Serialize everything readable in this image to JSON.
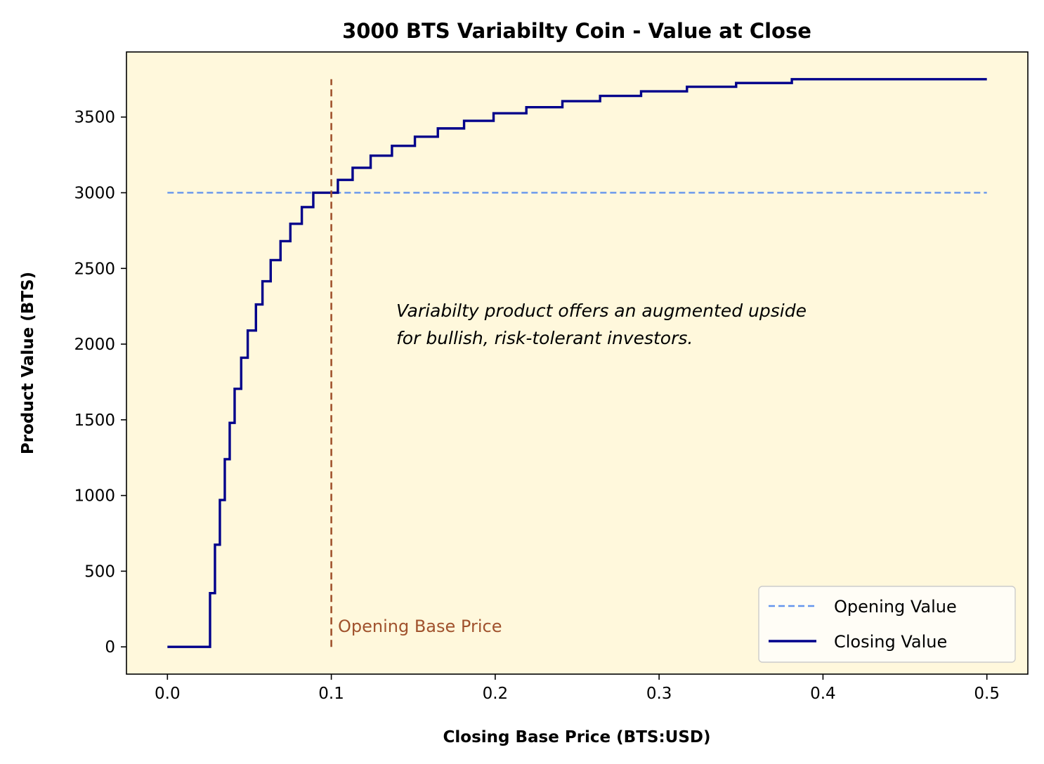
{
  "chart_data": {
    "type": "line",
    "title": "3000 BTS Variabilty Coin - Value at Close",
    "xlabel": "Closing Base Price (BTS:USD)",
    "ylabel": "Product Value (BTS)",
    "xlim": [
      -0.025,
      0.525
    ],
    "ylim": [
      -180,
      3930
    ],
    "xticks": [
      0.0,
      0.1,
      0.2,
      0.3,
      0.4,
      0.5
    ],
    "xtick_labels": [
      "0.0",
      "0.1",
      "0.2",
      "0.3",
      "0.4",
      "0.5"
    ],
    "yticks": [
      0,
      500,
      1000,
      1500,
      2000,
      2500,
      3000,
      3500
    ],
    "ytick_labels": [
      "0",
      "500",
      "1000",
      "1500",
      "2000",
      "2500",
      "3000",
      "3500"
    ],
    "grid": false,
    "background_color": "#fff8dc",
    "legend_position": "lower-right",
    "series": [
      {
        "name": "Opening Value",
        "style": "dashed",
        "color": "#6495ed",
        "x": [
          0.0,
          0.5
        ],
        "y": [
          3000,
          3000
        ]
      },
      {
        "name": "Closing Value",
        "style": "step",
        "color": "#00008b",
        "x": [
          0.0,
          0.026,
          0.029,
          0.032,
          0.035,
          0.038,
          0.041,
          0.045,
          0.049,
          0.054,
          0.058,
          0.063,
          0.069,
          0.075,
          0.082,
          0.089,
          0.096,
          0.104,
          0.113,
          0.124,
          0.137,
          0.151,
          0.165,
          0.181,
          0.199,
          0.219,
          0.241,
          0.264,
          0.289,
          0.317,
          0.347,
          0.381,
          0.5
        ],
        "y": [
          0,
          355,
          675,
          970,
          1240,
          1480,
          1705,
          1910,
          2090,
          2262,
          2415,
          2555,
          2680,
          2795,
          2905,
          3000,
          3000,
          3085,
          3165,
          3245,
          3310,
          3370,
          3425,
          3475,
          3525,
          3565,
          3605,
          3640,
          3670,
          3700,
          3725,
          3750,
          3750
        ]
      }
    ],
    "annotations": [
      {
        "kind": "vline",
        "x": 0.1,
        "y_range": [
          0,
          3750
        ],
        "style": "dashed",
        "color": "#a0522d",
        "label": "Opening Base Price"
      },
      {
        "kind": "text",
        "lines": [
          "Variabilty product offers an augmented upside",
          "for bullish, risk-tolerant investors."
        ]
      }
    ]
  }
}
